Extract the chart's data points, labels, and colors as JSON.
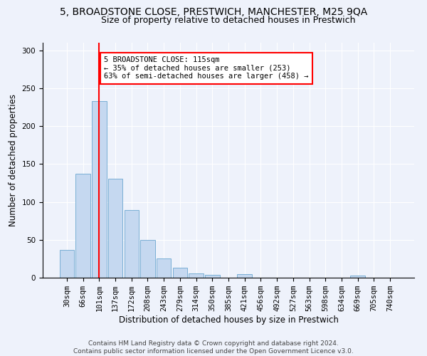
{
  "title1": "5, BROADSTONE CLOSE, PRESTWICH, MANCHESTER, M25 9QA",
  "title2": "Size of property relative to detached houses in Prestwich",
  "xlabel": "Distribution of detached houses by size in Prestwich",
  "ylabel": "Number of detached properties",
  "bar_labels": [
    "30sqm",
    "66sqm",
    "101sqm",
    "137sqm",
    "172sqm",
    "208sqm",
    "243sqm",
    "279sqm",
    "314sqm",
    "350sqm",
    "385sqm",
    "421sqm",
    "456sqm",
    "492sqm",
    "527sqm",
    "563sqm",
    "598sqm",
    "634sqm",
    "669sqm",
    "705sqm",
    "740sqm"
  ],
  "bar_values": [
    37,
    137,
    233,
    131,
    89,
    50,
    25,
    13,
    6,
    4,
    0,
    5,
    0,
    0,
    0,
    0,
    0,
    0,
    3,
    0,
    0
  ],
  "bar_color": "#c5d8f0",
  "bar_edge_color": "#7aafd4",
  "background_color": "#eef2fb",
  "grid_color": "#ffffff",
  "vline_color": "red",
  "annotation_text": "5 BROADSTONE CLOSE: 115sqm\n← 35% of detached houses are smaller (253)\n63% of semi-detached houses are larger (458) →",
  "annotation_box_color": "white",
  "annotation_box_edge_color": "red",
  "ylim": [
    0,
    310
  ],
  "yticks": [
    0,
    50,
    100,
    150,
    200,
    250,
    300
  ],
  "footer_text": "Contains HM Land Registry data © Crown copyright and database right 2024.\nContains public sector information licensed under the Open Government Licence v3.0.",
  "title1_fontsize": 10,
  "title2_fontsize": 9,
  "xlabel_fontsize": 8.5,
  "ylabel_fontsize": 8.5,
  "tick_fontsize": 7.5,
  "footer_fontsize": 6.5,
  "annotation_fontsize": 7.5
}
